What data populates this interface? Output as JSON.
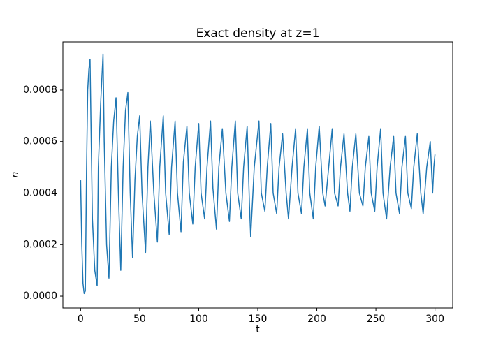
{
  "chart_data": {
    "type": "line",
    "title": "Exact density at z=1",
    "xlabel": "t",
    "ylabel": "n",
    "color": "#1f77b4",
    "x": [
      0,
      1,
      2,
      3,
      4,
      5,
      6,
      7,
      8,
      9,
      10,
      12,
      14,
      15,
      17,
      19,
      20,
      22,
      24,
      26,
      28,
      30,
      32,
      34,
      36,
      38,
      40,
      42,
      44,
      46,
      48,
      50,
      52,
      55,
      57,
      59,
      62,
      65,
      67,
      70,
      72,
      75,
      77,
      80,
      82,
      85,
      87,
      90,
      92,
      95,
      97,
      100,
      102,
      105,
      107,
      110,
      112,
      115,
      117,
      120,
      123,
      126,
      128,
      131,
      133,
      136,
      138,
      141,
      143,
      144,
      147,
      151,
      153,
      156,
      158,
      161,
      163,
      166,
      168,
      171,
      174,
      176,
      179,
      182,
      184,
      187,
      189,
      192,
      194,
      197,
      199,
      202,
      205,
      207,
      210,
      213,
      215,
      218,
      220,
      223,
      226,
      228,
      230,
      233,
      236,
      239,
      241,
      244,
      246,
      249,
      251,
      254,
      256,
      259,
      262,
      265,
      267,
      270,
      272,
      275,
      277,
      280,
      282,
      285,
      288,
      290,
      293,
      296,
      298,
      299,
      300
    ],
    "values": [
      0.00045,
      0.0002,
      5e-05,
      1e-05,
      2e-05,
      0.00048,
      0.0008,
      0.00088,
      0.00092,
      0.0006,
      0.0003,
      0.0001,
      4e-05,
      0.0005,
      0.00075,
      0.00094,
      0.0006,
      0.0002,
      7e-05,
      0.0005,
      0.00068,
      0.00077,
      0.0004,
      0.0001,
      0.0005,
      0.00072,
      0.00079,
      0.0004,
      0.00015,
      0.00045,
      0.00062,
      0.0007,
      0.0004,
      0.00017,
      0.0005,
      0.00068,
      0.0004,
      0.00021,
      0.0005,
      0.0007,
      0.0004,
      0.00024,
      0.0005,
      0.00068,
      0.0004,
      0.00025,
      0.00052,
      0.00066,
      0.0004,
      0.00028,
      0.0005,
      0.00067,
      0.0004,
      0.0003,
      0.0005,
      0.00068,
      0.00042,
      0.00026,
      0.0005,
      0.00065,
      0.0004,
      0.00029,
      0.0005,
      0.00068,
      0.0004,
      0.0003,
      0.0005,
      0.00066,
      0.00035,
      0.00023,
      0.0005,
      0.00068,
      0.0004,
      0.00033,
      0.0005,
      0.00067,
      0.0004,
      0.00032,
      0.0005,
      0.00063,
      0.0004,
      0.0003,
      0.0005,
      0.00065,
      0.0004,
      0.00032,
      0.0005,
      0.00065,
      0.0004,
      0.0003,
      0.0005,
      0.00066,
      0.0004,
      0.00035,
      0.0005,
      0.00065,
      0.0004,
      0.00035,
      0.0005,
      0.00063,
      0.0004,
      0.00033,
      0.0005,
      0.00063,
      0.0004,
      0.00035,
      0.0005,
      0.00062,
      0.0004,
      0.00033,
      0.0005,
      0.00065,
      0.0004,
      0.0003,
      0.0005,
      0.00062,
      0.0004,
      0.00032,
      0.0005,
      0.00062,
      0.0004,
      0.00034,
      0.0005,
      0.00063,
      0.0004,
      0.00032,
      0.0005,
      0.0006,
      0.0004,
      0.0005,
      0.00055
    ],
    "xlim": [
      -15,
      315
    ],
    "xticks": [
      0,
      50,
      100,
      150,
      200,
      250,
      300
    ],
    "ylim": [
      -4.6e-05,
      0.000987
    ],
    "yticks": [
      {
        "value": 0,
        "label": "0.0000"
      },
      0.0002,
      0.0004,
      0.0006,
      0.0008
    ]
  }
}
